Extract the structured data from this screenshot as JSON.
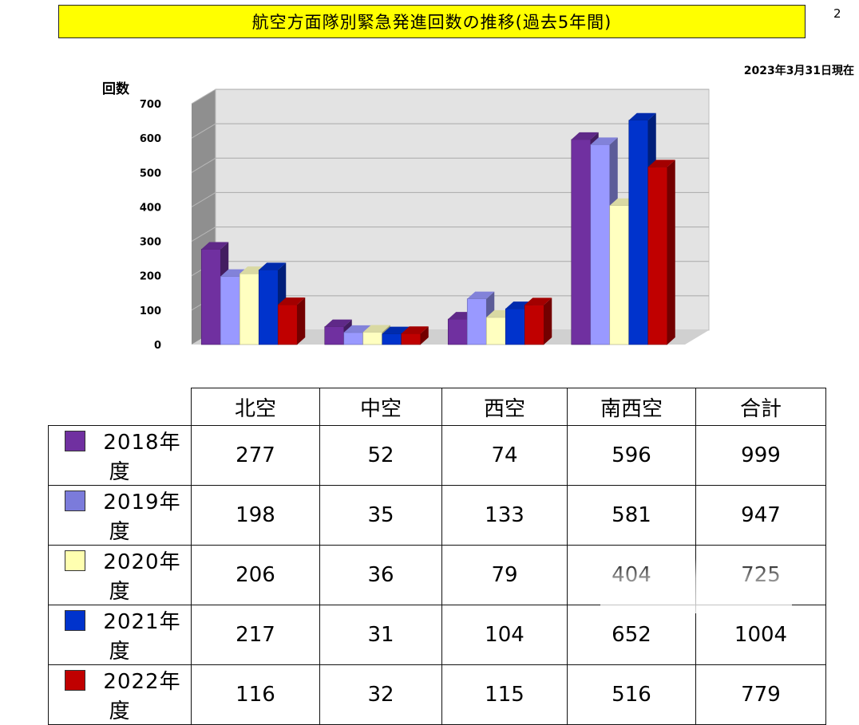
{
  "page": {
    "number": "2",
    "as_of": "2023年3月31日現在"
  },
  "chart_data": {
    "type": "bar",
    "title": "航空方面隊別緊急発進回数の推移(過去5年間)",
    "ylabel": "回数",
    "xlabel": "",
    "ylim": [
      0,
      700
    ],
    "yticks": [
      0,
      100,
      200,
      300,
      400,
      500,
      600,
      700
    ],
    "grid": true,
    "categories": [
      "北空",
      "中空",
      "西空",
      "南西空"
    ],
    "series": [
      {
        "name": "2018年度",
        "color": "#7030a0",
        "values": [
          277,
          52,
          74,
          596
        ]
      },
      {
        "name": "2019年度",
        "color": "#9999ff",
        "values": [
          198,
          35,
          133,
          581
        ]
      },
      {
        "name": "2020年度",
        "color": "#ffffc0",
        "values": [
          206,
          36,
          79,
          404
        ]
      },
      {
        "name": "2021年度",
        "color": "#0033cc",
        "values": [
          217,
          31,
          104,
          652
        ]
      },
      {
        "name": "2022年度",
        "color": "#c00000",
        "values": [
          116,
          32,
          115,
          516
        ]
      }
    ]
  },
  "table": {
    "headers": [
      "北空",
      "中空",
      "西空",
      "南西空",
      "合計"
    ],
    "rows": [
      {
        "label": "2018年度",
        "swatch": "#7030a0",
        "values": [
          "277",
          "52",
          "74",
          "596",
          "999"
        ]
      },
      {
        "label": "2019年度",
        "swatch": "#7b7bdb",
        "values": [
          "198",
          "35",
          "133",
          "581",
          "947"
        ]
      },
      {
        "label": "2020年度",
        "swatch": "#ffffb0",
        "values": [
          "206",
          "36",
          "79",
          "404",
          "725"
        ]
      },
      {
        "label": "2021年度",
        "swatch": "#0033cc",
        "values": [
          "217",
          "31",
          "104",
          "652",
          "1004"
        ]
      },
      {
        "label": "2022年度",
        "swatch": "#c00000",
        "values": [
          "116",
          "32",
          "115",
          "516",
          "779"
        ]
      }
    ]
  }
}
